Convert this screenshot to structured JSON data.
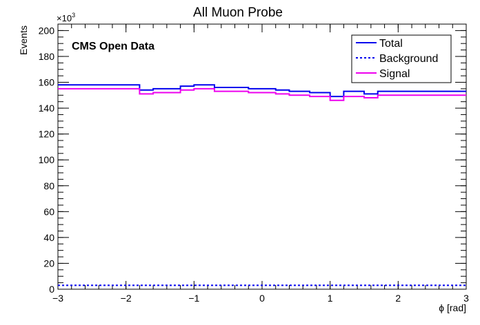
{
  "chart_data": {
    "type": "line",
    "title": "All Muon Probe",
    "xlabel": "ϕ [rad]",
    "ylabel": "Events",
    "y_multiplier": "×10",
    "y_multiplier_exp": "3",
    "annotation": "CMS Open Data",
    "xlim": [
      -3,
      3
    ],
    "ylim": [
      0,
      205
    ],
    "x_ticks": [
      -3,
      -2,
      -1,
      0,
      1,
      2,
      3
    ],
    "x_tick_labels": [
      "−3",
      "−2",
      "−1",
      "0",
      "1",
      "2",
      "3"
    ],
    "y_ticks": [
      0,
      20,
      40,
      60,
      80,
      100,
      120,
      140,
      160,
      180,
      200
    ],
    "y_tick_labels": [
      "0",
      "20",
      "40",
      "60",
      "80",
      "100",
      "120",
      "140",
      "160",
      "180",
      "200"
    ],
    "grid": false,
    "legend_position": "top-right",
    "series": [
      {
        "name": "Total",
        "style": "solid",
        "color": "#0000ee",
        "bin_edges": [
          -3.0,
          -1.8,
          -1.6,
          -1.2,
          -1.0,
          -0.7,
          -0.2,
          0.2,
          0.4,
          0.7,
          1.0,
          1.2,
          1.5,
          1.7,
          1.8,
          3.0
        ],
        "values": [
          158,
          154,
          155,
          157,
          158,
          156,
          155,
          154,
          153,
          152,
          149,
          153,
          151,
          153,
          153
        ]
      },
      {
        "name": "Background",
        "style": "dotted",
        "color": "#0000ee",
        "bin_edges": [
          -3.0,
          3.0
        ],
        "values": [
          3
        ]
      },
      {
        "name": "Signal",
        "style": "solid",
        "color": "#ee00ee",
        "bin_edges": [
          -3.0,
          -1.8,
          -1.6,
          -1.2,
          -1.0,
          -0.7,
          -0.2,
          0.2,
          0.4,
          0.7,
          1.0,
          1.2,
          1.5,
          1.7,
          1.8,
          3.0
        ],
        "values": [
          155,
          151,
          152,
          154,
          155,
          153,
          152,
          151,
          150,
          149,
          146,
          149,
          148,
          150,
          150
        ]
      }
    ]
  }
}
